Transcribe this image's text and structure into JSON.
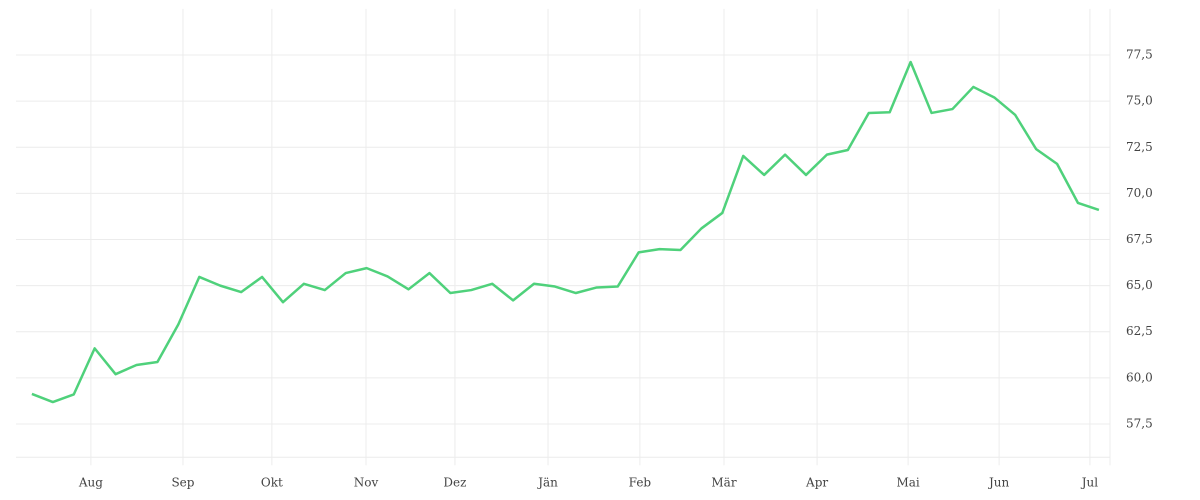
{
  "chart_data": {
    "type": "line",
    "x": [
      0,
      1,
      2,
      3,
      4,
      5,
      6,
      7,
      8,
      9,
      10,
      11,
      12,
      13,
      14,
      15,
      16,
      17,
      18,
      19,
      20,
      21,
      22,
      23,
      24,
      25,
      26,
      27,
      28,
      29,
      30,
      31,
      32,
      33,
      34,
      35,
      36,
      37,
      38,
      39,
      40,
      41,
      42,
      43,
      44,
      45,
      46,
      47,
      48,
      49,
      50,
      51
    ],
    "series": [
      {
        "color": "#4fd17b",
        "values": [
          59.13,
          58.69,
          59.1,
          61.6,
          60.2,
          60.7,
          60.86,
          62.9,
          65.47,
          65.0,
          64.65,
          65.47,
          64.1,
          65.1,
          64.76,
          65.68,
          65.95,
          65.5,
          64.8,
          65.68,
          64.6,
          64.76,
          65.1,
          64.2,
          65.1,
          64.95,
          64.6,
          64.9,
          64.95,
          66.8,
          66.98,
          66.93,
          68.1,
          68.94,
          72.03,
          71.0,
          72.1,
          71.0,
          72.1,
          72.35,
          74.36,
          74.4,
          77.12,
          74.36,
          74.57,
          75.77,
          75.2,
          74.25,
          72.4,
          71.6,
          69.48,
          69.1
        ]
      }
    ],
    "xlim": [
      -0.76,
      51.53
    ],
    "xticks": [
      {
        "value": 2.82,
        "label": "Aug"
      },
      {
        "value": 7.22,
        "label": "Sep"
      },
      {
        "value": 11.47,
        "label": "Okt"
      },
      {
        "value": 15.97,
        "label": "Nov"
      },
      {
        "value": 20.22,
        "label": "Dez"
      },
      {
        "value": 24.67,
        "label": "Jän"
      },
      {
        "value": 29.06,
        "label": "Feb"
      },
      {
        "value": 33.08,
        "label": "Mär"
      },
      {
        "value": 37.53,
        "label": "Apr"
      },
      {
        "value": 41.88,
        "label": "Mai"
      },
      {
        "value": 46.23,
        "label": "Jun"
      },
      {
        "value": 50.57,
        "label": "Jul"
      }
    ],
    "ylim": [
      55.7,
      80
    ],
    "yticks": [
      {
        "value": 57.5,
        "label": "57,5"
      },
      {
        "value": 60,
        "label": "60,0"
      },
      {
        "value": 62.5,
        "label": "62,5"
      },
      {
        "value": 65,
        "label": "65,0"
      },
      {
        "value": 67.5,
        "label": "67,5"
      },
      {
        "value": 70,
        "label": "70,0"
      },
      {
        "value": 72.5,
        "label": "72,5"
      },
      {
        "value": 75,
        "label": "75,0"
      },
      {
        "value": 77.5,
        "label": "77,5"
      }
    ],
    "grid": true,
    "y_axis_side": "right"
  }
}
